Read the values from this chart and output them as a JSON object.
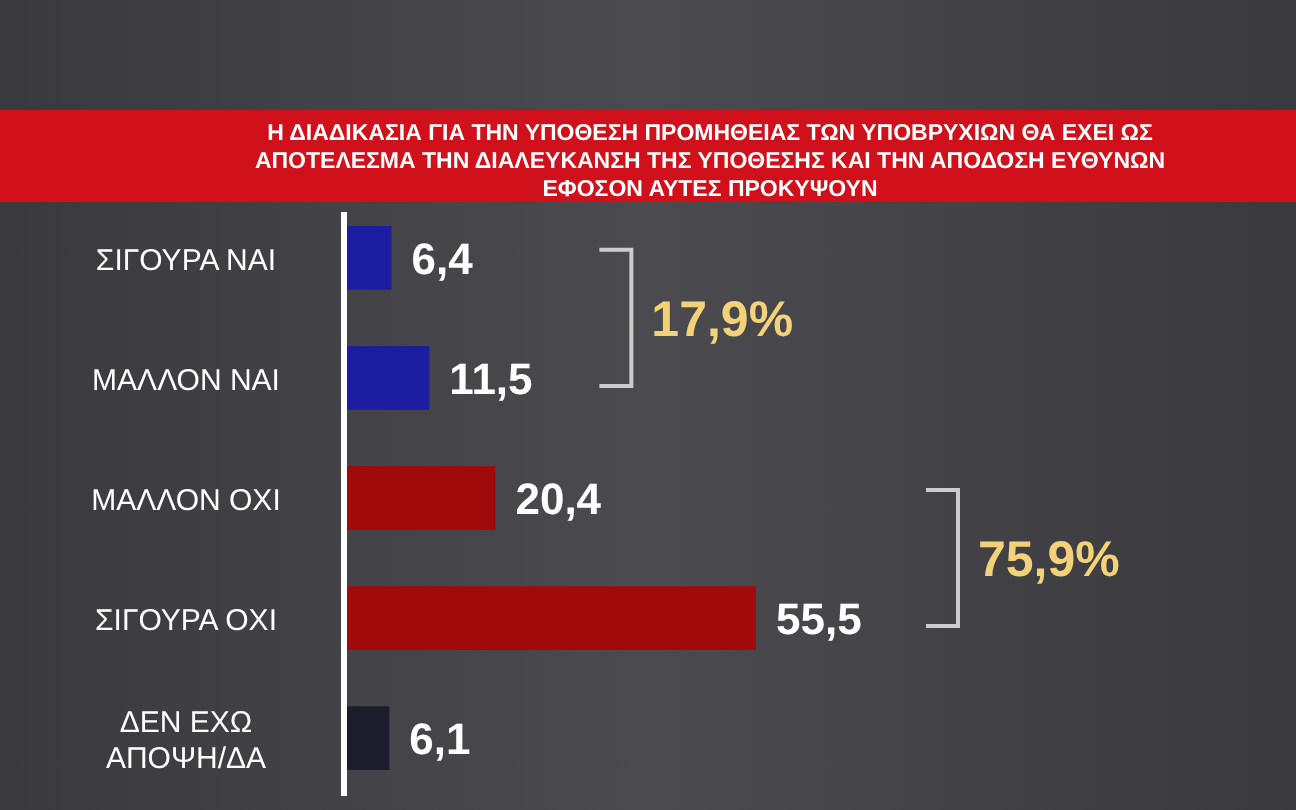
{
  "chart_data": {
    "type": "bar",
    "orientation": "horizontal",
    "title": "Η ΔΙΑΔΙΚΑΣΙΑ ΓΙΑ ΤΗΝ ΥΠΟΘΕΣΗ ΠΡΟΜΗΘΕΙΑΣ ΤΩΝ ΥΠΟΒΡΥΧΙΩΝ ΘΑ ΕΧΕΙ ΩΣ ΑΠΟΤΕΛΕΣΜΑ ΤΗΝ ΔΙΑΛΕΥΚΑΝΣΗ ΤΗΣ ΥΠΟΘΕΣΗΣ ΚΑΙ ΤΗΝ ΑΠΟΔΟΣΗ ΕΥΘΥΝΩΝ ΕΦΟΣΟΝ ΑΥΤΕΣ ΠΡΟΚΥΨΟΥΝ",
    "categories": [
      "ΣΙΓΟΥΡΑ ΝΑΙ",
      "ΜΑΛΛΟΝ ΝΑΙ",
      "ΜΑΛΛΟΝ ΟΧΙ",
      "ΣΙΓΟΥΡΑ ΟΧΙ",
      "ΔΕΝ ΕΧΩ ΑΠΟΨΗ/ΔΑ"
    ],
    "values": [
      6.4,
      11.5,
      20.4,
      55.5,
      6.1
    ],
    "colors": [
      "#1c1ca0",
      "#1c1ca0",
      "#a00a0a",
      "#a00a0a",
      "#1c1c2c"
    ],
    "value_labels": [
      "6,4",
      "11,5",
      "20,4",
      "55,5",
      "6,1"
    ],
    "annotations": [
      "17,9%",
      "75,9%"
    ],
    "tick_labels": "y"
  }
}
